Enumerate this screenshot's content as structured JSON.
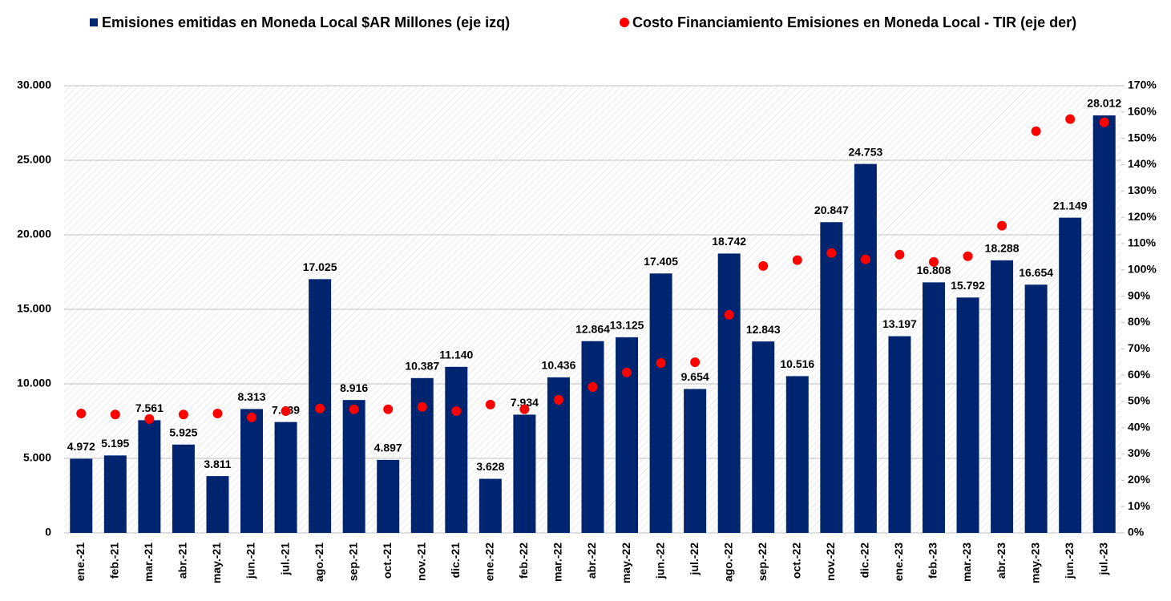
{
  "chart_data": {
    "type": "bar",
    "categories": [
      "ene.-21",
      "feb.-21",
      "mar.-21",
      "abr.-21",
      "may.-21",
      "jun.-21",
      "jul.-21",
      "ago.-21",
      "sep.-21",
      "oct.-21",
      "nov.-21",
      "dic.-21",
      "ene.-22",
      "feb.-22",
      "mar.-22",
      "abr.-22",
      "may.-22",
      "jun.-22",
      "jul.-22",
      "ago.-22",
      "sep.-22",
      "oct.-22",
      "nov.-22",
      "dic.-22",
      "ene.-23",
      "feb.-23",
      "mar.-23",
      "abr.-23",
      "may.-23",
      "jun.-23",
      "jul.-23"
    ],
    "series": [
      {
        "name": "Emisiones emitidas en Moneda Local $AR Millones (eje izq)",
        "color": "#002570",
        "type": "bar",
        "values": [
          4972,
          5195,
          7561,
          5925,
          3811,
          8313,
          7439,
          17025,
          8916,
          4897,
          10387,
          11140,
          3628,
          7934,
          10436,
          12864,
          13125,
          17405,
          9654,
          18742,
          12843,
          10516,
          20847,
          24753,
          13197,
          16808,
          15792,
          18288,
          16654,
          21149,
          28012
        ],
        "value_labels": [
          "4.972",
          "5.195",
          "7.561",
          "5.925",
          "3.811",
          "8.313",
          "7.439",
          "17.025",
          "8.916",
          "4.897",
          "10.387",
          "11.140",
          "3.628",
          "7.934",
          "10.436",
          "12.864",
          "13.125",
          "17.405",
          "9.654",
          "18.742",
          "12.843",
          "10.516",
          "20.847",
          "24.753",
          "13.197",
          "16.808",
          "15.792",
          "18.288",
          "16.654",
          "21.149",
          "28.012"
        ]
      },
      {
        "name": "Costo Financiamiento Emisiones en Moneda Local - TIR (eje der)",
        "color": "#ff0000",
        "type": "scatter",
        "axis": "y2",
        "values": [
          45.4,
          45,
          43.3,
          45,
          45.4,
          43.9,
          46.3,
          47.3,
          47,
          47,
          47.9,
          46.3,
          48.8,
          47,
          50.6,
          55.5,
          61,
          64.6,
          64.9,
          82.9,
          101.5,
          103.7,
          106.4,
          104,
          105.8,
          103,
          105.2,
          116.8,
          152.7,
          157.3,
          156.1
        ]
      }
    ],
    "ylim": [
      0,
      30000
    ],
    "yticks": [
      0,
      {
        "value": 5000,
        "label": "5.000"
      },
      {
        "value": 10000,
        "label": "10.000"
      },
      {
        "value": 15000,
        "label": "15.000"
      },
      {
        "value": 20000,
        "label": "20.000"
      },
      {
        "value": 25000,
        "label": "25.000"
      },
      {
        "value": 30000,
        "label": "30.000"
      }
    ],
    "y2lim": [
      0,
      170
    ],
    "y2ticks": [
      {
        "value": 0,
        "label": "0%"
      },
      {
        "value": 10,
        "label": "10%"
      },
      {
        "value": 20,
        "label": "20%"
      },
      {
        "value": 30,
        "label": "30%"
      },
      {
        "value": 40,
        "label": "40%"
      },
      {
        "value": 50,
        "label": "50%"
      },
      {
        "value": 60,
        "label": "60%"
      },
      {
        "value": 70,
        "label": "70%"
      },
      {
        "value": 80,
        "label": "80%"
      },
      {
        "value": 90,
        "label": "90%"
      },
      {
        "value": 100,
        "label": "100%"
      },
      {
        "value": 110,
        "label": "110%"
      },
      {
        "value": 120,
        "label": "120%"
      },
      {
        "value": 130,
        "label": "130%"
      },
      {
        "value": 140,
        "label": "140%"
      },
      {
        "value": 150,
        "label": "150%"
      },
      {
        "value": 160,
        "label": "160%"
      },
      {
        "value": 170,
        "label": "170%"
      }
    ],
    "grid": true,
    "legend": "top"
  }
}
